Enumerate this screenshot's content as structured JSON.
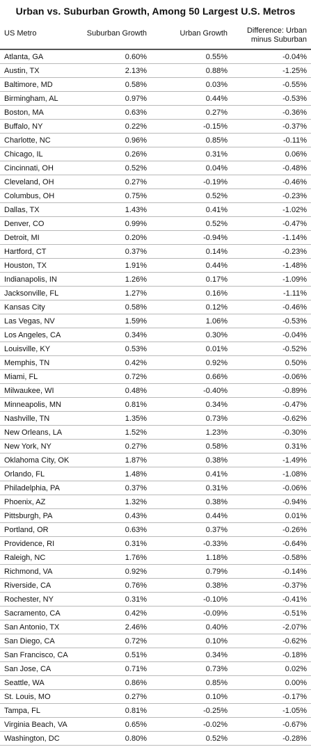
{
  "chart_data": {
    "type": "table",
    "title": "Urban vs. Suburban Growth, Among 50 Largest U.S. Metros",
    "columns": [
      "US Metro",
      "Suburban Growth",
      "Urban Growth",
      "Difference: Urban minus Suburban"
    ],
    "rows": [
      [
        "Atlanta, GA",
        "0.60%",
        "0.55%",
        "-0.04%"
      ],
      [
        "Austin, TX",
        "2.13%",
        "0.88%",
        "-1.25%"
      ],
      [
        "Baltimore, MD",
        "0.58%",
        "0.03%",
        "-0.55%"
      ],
      [
        "Birmingham, AL",
        "0.97%",
        "0.44%",
        "-0.53%"
      ],
      [
        "Boston, MA",
        "0.63%",
        "0.27%",
        "-0.36%"
      ],
      [
        "Buffalo, NY",
        "0.22%",
        "-0.15%",
        "-0.37%"
      ],
      [
        "Charlotte, NC",
        "0.96%",
        "0.85%",
        "-0.11%"
      ],
      [
        "Chicago, IL",
        "0.26%",
        "0.31%",
        "0.06%"
      ],
      [
        "Cincinnati, OH",
        "0.52%",
        "0.04%",
        "-0.48%"
      ],
      [
        "Cleveland, OH",
        "0.27%",
        "-0.19%",
        "-0.46%"
      ],
      [
        "Columbus, OH",
        "0.75%",
        "0.52%",
        "-0.23%"
      ],
      [
        "Dallas, TX",
        "1.43%",
        "0.41%",
        "-1.02%"
      ],
      [
        "Denver, CO",
        "0.99%",
        "0.52%",
        "-0.47%"
      ],
      [
        "Detroit, MI",
        "0.20%",
        "-0.94%",
        "-1.14%"
      ],
      [
        "Hartford, CT",
        "0.37%",
        "0.14%",
        "-0.23%"
      ],
      [
        "Houston, TX",
        "1.91%",
        "0.44%",
        "-1.48%"
      ],
      [
        "Indianapolis, IN",
        "1.26%",
        "0.17%",
        "-1.09%"
      ],
      [
        "Jacksonville, FL",
        "1.27%",
        "0.16%",
        "-1.11%"
      ],
      [
        "Kansas City",
        "0.58%",
        "0.12%",
        "-0.46%"
      ],
      [
        "Las Vegas, NV",
        "1.59%",
        "1.06%",
        "-0.53%"
      ],
      [
        "Los Angeles, CA",
        "0.34%",
        "0.30%",
        "-0.04%"
      ],
      [
        "Louisville, KY",
        "0.53%",
        "0.01%",
        "-0.52%"
      ],
      [
        "Memphis, TN",
        "0.42%",
        "0.92%",
        "0.50%"
      ],
      [
        "Miami, FL",
        "0.72%",
        "0.66%",
        "-0.06%"
      ],
      [
        "Milwaukee, WI",
        "0.48%",
        "-0.40%",
        "-0.89%"
      ],
      [
        "Minneapolis, MN",
        "0.81%",
        "0.34%",
        "-0.47%"
      ],
      [
        "Nashville, TN",
        "1.35%",
        "0.73%",
        "-0.62%"
      ],
      [
        "New Orleans, LA",
        "1.52%",
        "1.23%",
        "-0.30%"
      ],
      [
        "New York, NY",
        "0.27%",
        "0.58%",
        "0.31%"
      ],
      [
        "Oklahoma City, OK",
        "1.87%",
        "0.38%",
        "-1.49%"
      ],
      [
        "Orlando, FL",
        "1.48%",
        "0.41%",
        "-1.08%"
      ],
      [
        "Philadelphia, PA",
        "0.37%",
        "0.31%",
        "-0.06%"
      ],
      [
        "Phoenix, AZ",
        "1.32%",
        "0.38%",
        "-0.94%"
      ],
      [
        "Pittsburgh, PA",
        "0.43%",
        "0.44%",
        "0.01%"
      ],
      [
        "Portland, OR",
        "0.63%",
        "0.37%",
        "-0.26%"
      ],
      [
        "Providence, RI",
        "0.31%",
        "-0.33%",
        "-0.64%"
      ],
      [
        "Raleigh, NC",
        "1.76%",
        "1.18%",
        "-0.58%"
      ],
      [
        "Richmond, VA",
        "0.92%",
        "0.79%",
        "-0.14%"
      ],
      [
        "Riverside, CA",
        "0.76%",
        "0.38%",
        "-0.37%"
      ],
      [
        "Rochester, NY",
        "0.31%",
        "-0.10%",
        "-0.41%"
      ],
      [
        "Sacramento, CA",
        "0.42%",
        "-0.09%",
        "-0.51%"
      ],
      [
        "San Antonio, TX",
        "2.46%",
        "0.40%",
        "-2.07%"
      ],
      [
        "San Diego, CA",
        "0.72%",
        "0.10%",
        "-0.62%"
      ],
      [
        "San Francisco, CA",
        "0.51%",
        "0.34%",
        "-0.18%"
      ],
      [
        "San Jose, CA",
        "0.71%",
        "0.73%",
        "0.02%"
      ],
      [
        "Seattle, WA",
        "0.86%",
        "0.85%",
        "0.00%"
      ],
      [
        "St. Louis, MO",
        "0.27%",
        "0.10%",
        "-0.17%"
      ],
      [
        "Tampa, FL",
        "0.81%",
        "-0.25%",
        "-1.05%"
      ],
      [
        "Virginia Beach, VA",
        "0.65%",
        "-0.02%",
        "-0.67%"
      ],
      [
        "Washington, DC",
        "0.80%",
        "0.52%",
        "-0.28%"
      ]
    ]
  },
  "header": {
    "metro": "US Metro",
    "suburban": "Suburban Growth",
    "urban": "Urban Growth",
    "diff_line1": "Difference: Urban",
    "diff_line2": "minus Suburban"
  }
}
